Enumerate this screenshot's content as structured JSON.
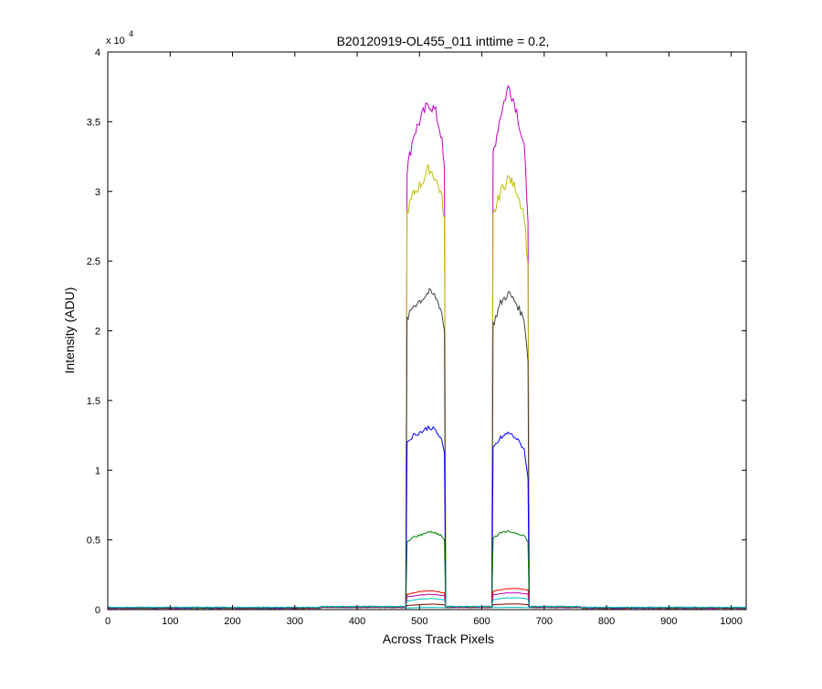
{
  "chart_data": {
    "type": "line",
    "title": "B20120919-OL455_011 inttime = 0.2,",
    "xlabel": "Across Track Pixels",
    "ylabel": "Intensity (ADU)",
    "y_exponent_label": "x 10",
    "y_exponent_power": "4",
    "xlim": [
      0,
      1024
    ],
    "ylim": [
      0,
      40000
    ],
    "x_ticks": [
      0,
      100,
      200,
      300,
      400,
      500,
      600,
      700,
      800,
      900,
      1000
    ],
    "y_ticks": [
      0,
      5000,
      10000,
      15000,
      20000,
      25000,
      30000,
      35000,
      40000
    ],
    "y_tick_labels": [
      "0",
      "0.5",
      "1",
      "1.5",
      "2",
      "2.5",
      "3",
      "3.5",
      "4"
    ],
    "grid": false,
    "legend": "none",
    "band_edges": {
      "left_band": [
        480,
        540
      ],
      "right_band": [
        617,
        675
      ]
    },
    "series": [
      {
        "color": "#bf00bf",
        "left_band": [
          [
            480,
            31500
          ],
          [
            490,
            34000
          ],
          [
            505,
            35500
          ],
          [
            515,
            36300
          ],
          [
            525,
            35800
          ],
          [
            535,
            34000
          ],
          [
            540,
            31500
          ]
        ],
        "right_band": [
          [
            617,
            32500
          ],
          [
            630,
            35500
          ],
          [
            643,
            37600
          ],
          [
            655,
            36000
          ],
          [
            668,
            33000
          ],
          [
            675,
            27500
          ]
        ]
      },
      {
        "color": "#bfbf00",
        "left_band": [
          [
            480,
            28500
          ],
          [
            490,
            29800
          ],
          [
            505,
            30700
          ],
          [
            515,
            31700
          ],
          [
            525,
            31000
          ],
          [
            535,
            29800
          ],
          [
            540,
            28000
          ]
        ],
        "right_band": [
          [
            617,
            28000
          ],
          [
            630,
            30000
          ],
          [
            643,
            31000
          ],
          [
            655,
            30200
          ],
          [
            668,
            28300
          ],
          [
            675,
            24000
          ]
        ]
      },
      {
        "color": "#404040",
        "left_band": [
          [
            480,
            20800
          ],
          [
            490,
            21800
          ],
          [
            505,
            22300
          ],
          [
            515,
            22800
          ],
          [
            525,
            22500
          ],
          [
            535,
            21500
          ],
          [
            540,
            20000
          ]
        ],
        "right_band": [
          [
            617,
            20300
          ],
          [
            630,
            22000
          ],
          [
            643,
            22700
          ],
          [
            655,
            22000
          ],
          [
            668,
            20800
          ],
          [
            675,
            17500
          ]
        ]
      },
      {
        "color": "#0000ff",
        "left_band": [
          [
            480,
            12000
          ],
          [
            490,
            12500
          ],
          [
            505,
            12800
          ],
          [
            515,
            13100
          ],
          [
            525,
            12900
          ],
          [
            535,
            12200
          ],
          [
            540,
            11200
          ]
        ],
        "right_band": [
          [
            617,
            11500
          ],
          [
            630,
            12300
          ],
          [
            643,
            12700
          ],
          [
            655,
            12300
          ],
          [
            668,
            11500
          ],
          [
            675,
            9000
          ]
        ]
      },
      {
        "color": "#008000",
        "left_band": [
          [
            480,
            4800
          ],
          [
            490,
            5200
          ],
          [
            505,
            5400
          ],
          [
            515,
            5600
          ],
          [
            525,
            5500
          ],
          [
            535,
            5300
          ],
          [
            540,
            5000
          ]
        ],
        "right_band": [
          [
            617,
            5100
          ],
          [
            630,
            5500
          ],
          [
            643,
            5600
          ],
          [
            655,
            5500
          ],
          [
            668,
            5300
          ],
          [
            675,
            4800
          ]
        ]
      },
      {
        "color": "#ff0000",
        "left_band": [
          [
            480,
            1100
          ],
          [
            500,
            1300
          ],
          [
            520,
            1350
          ],
          [
            540,
            1200
          ]
        ],
        "right_band": [
          [
            617,
            1300
          ],
          [
            640,
            1500
          ],
          [
            660,
            1500
          ],
          [
            675,
            1400
          ]
        ]
      },
      {
        "color": "#bf00bf",
        "left_band": [
          [
            480,
            900
          ],
          [
            500,
            1050
          ],
          [
            520,
            1100
          ],
          [
            540,
            1000
          ]
        ],
        "right_band": [
          [
            617,
            1050
          ],
          [
            640,
            1200
          ],
          [
            660,
            1200
          ],
          [
            675,
            1100
          ]
        ]
      },
      {
        "color": "#00bfbf",
        "left_band": [
          [
            480,
            600
          ],
          [
            500,
            750
          ],
          [
            520,
            800
          ],
          [
            540,
            700
          ]
        ],
        "right_band": [
          [
            617,
            700
          ],
          [
            640,
            850
          ],
          [
            660,
            850
          ],
          [
            675,
            750
          ]
        ]
      },
      {
        "color": "#800000",
        "left_band": [
          [
            480,
            300
          ],
          [
            500,
            350
          ],
          [
            520,
            400
          ],
          [
            540,
            350
          ]
        ],
        "right_band": [
          [
            617,
            350
          ],
          [
            640,
            400
          ],
          [
            660,
            400
          ],
          [
            675,
            350
          ]
        ]
      },
      {
        "color": "#00bfbf",
        "left_band": [
          [
            480,
            120
          ],
          [
            500,
            150
          ],
          [
            520,
            160
          ],
          [
            540,
            140
          ]
        ],
        "right_band": [
          [
            617,
            140
          ],
          [
            640,
            160
          ],
          [
            660,
            160
          ],
          [
            675,
            140
          ]
        ]
      }
    ]
  }
}
